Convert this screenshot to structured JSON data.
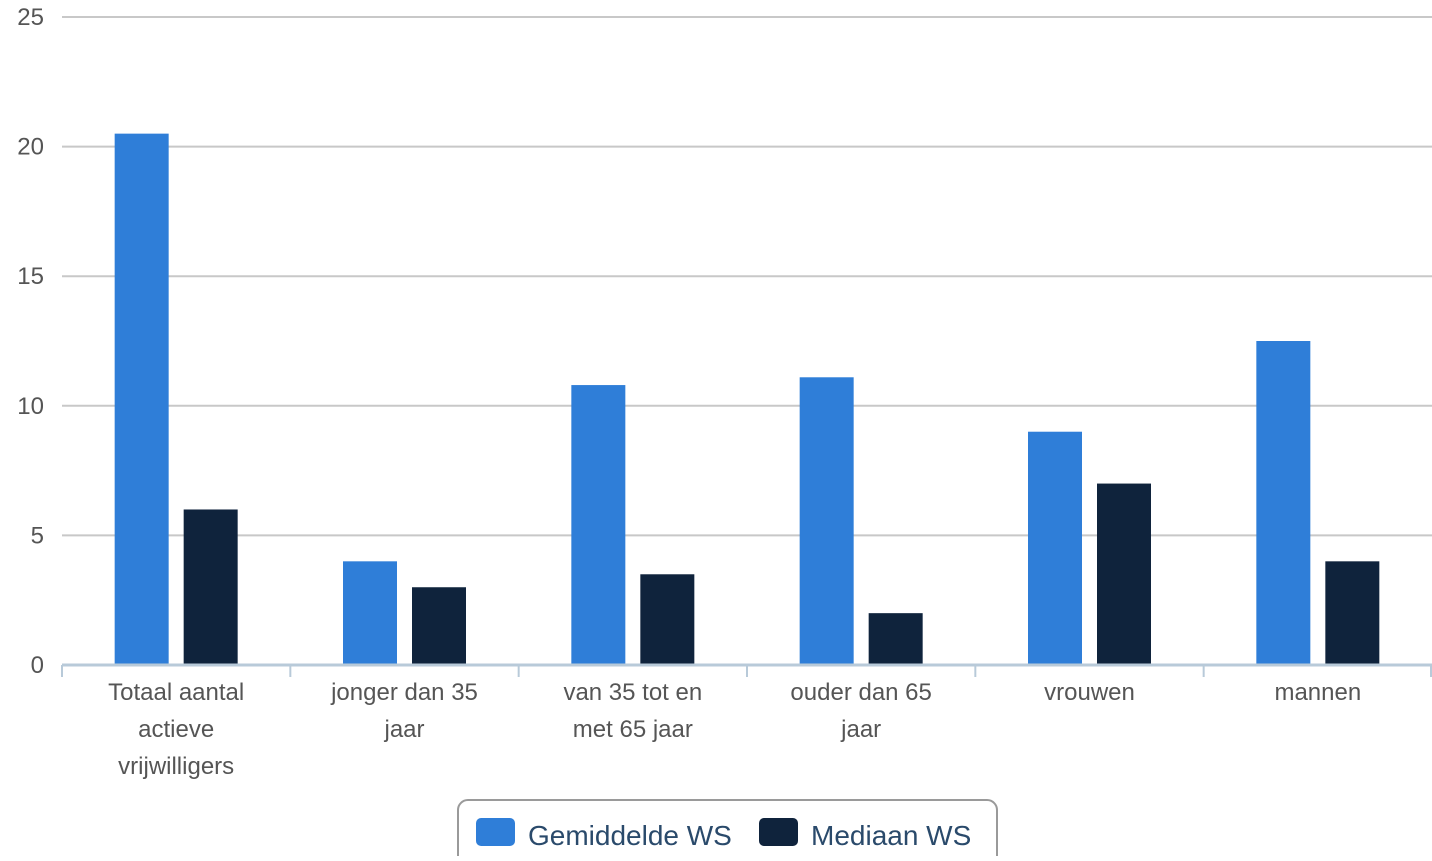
{
  "chart_data": {
    "type": "bar",
    "categories": [
      [
        "Totaal aantal",
        "actieve",
        "vrijwilligers"
      ],
      [
        "jonger dan 35",
        "jaar"
      ],
      [
        "van 35 tot en",
        "met 65 jaar"
      ],
      [
        "ouder dan 65",
        "jaar"
      ],
      [
        "vrouwen"
      ],
      [
        "mannen"
      ]
    ],
    "series": [
      {
        "name": "Gemiddelde WS",
        "color": "#2f7ed8",
        "values": [
          20.5,
          4.0,
          10.8,
          11.1,
          9.0,
          12.5
        ]
      },
      {
        "name": "Mediaan WS",
        "color": "#0f233c",
        "values": [
          6.0,
          3.0,
          3.5,
          2.0,
          7.0,
          4.0
        ]
      }
    ],
    "ylim": [
      0,
      25
    ],
    "yticks": [
      "0",
      "5",
      "10",
      "15",
      "20",
      "25"
    ],
    "ytick_values": [
      0,
      5,
      10,
      15,
      20,
      25
    ],
    "grid": true,
    "legend_position": "bottom-center",
    "title": "",
    "xlabel": "",
    "ylabel": ""
  }
}
